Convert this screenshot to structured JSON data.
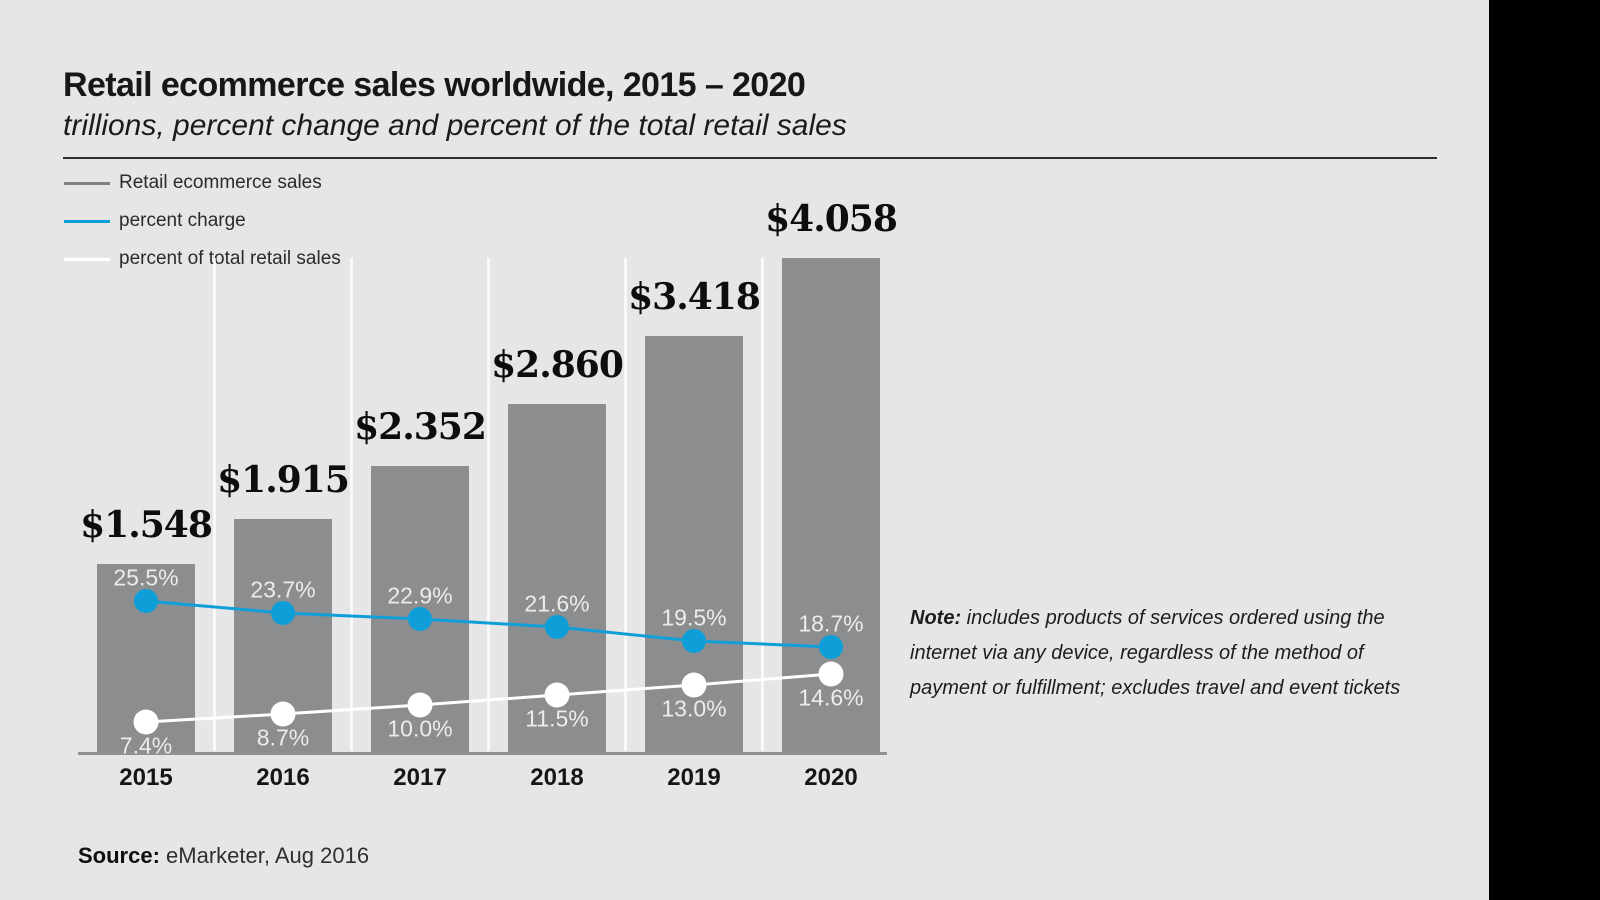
{
  "header": {
    "title": "Retail ecommerce sales worldwide, 2015 – 2020",
    "subtitle": "trillions, percent change and percent of the total retail sales"
  },
  "legend": {
    "items": [
      {
        "label": "Retail ecommerce sales",
        "color": "#808285"
      },
      {
        "label": "percent charge",
        "color": "#0f9fd8"
      },
      {
        "label": "percent of total retail sales",
        "color": "#ffffff"
      }
    ]
  },
  "chart_data": {
    "type": "bar",
    "title": "Retail ecommerce sales worldwide, 2015 – 2020",
    "subtitle": "trillions, percent change and percent of the total retail sales",
    "categories": [
      "2015",
      "2016",
      "2017",
      "2018",
      "2019",
      "2020"
    ],
    "series": [
      {
        "name": "Retail ecommerce sales",
        "type": "bar",
        "unit": "trillions USD",
        "color": "#8b8d8f",
        "values": [
          1.548,
          1.915,
          2.352,
          2.86,
          3.418,
          4.058
        ],
        "labels": [
          "$1.548",
          "$1.915",
          "$2.352",
          "$2.860",
          "$3.418",
          "$4.058"
        ]
      },
      {
        "name": "percent charge",
        "type": "line",
        "unit": "percent",
        "color": "#0f9fd8",
        "values": [
          25.5,
          23.7,
          22.9,
          21.6,
          19.5,
          18.7
        ],
        "labels": [
          "25.5%",
          "23.7%",
          "22.9%",
          "21.6%",
          "19.5%",
          "18.7%"
        ],
        "label_position": "above"
      },
      {
        "name": "percent of total retail sales",
        "type": "line",
        "unit": "percent",
        "color": "#ffffff",
        "values": [
          7.4,
          8.7,
          10.0,
          11.5,
          13.0,
          14.6
        ],
        "labels": [
          "7.4%",
          "8.7%",
          "10.0%",
          "11.5%",
          "13.0%",
          "14.6%"
        ],
        "label_position": "below"
      }
    ],
    "xlabel": "",
    "ylabel": "",
    "grid": "vertical-column-separators",
    "legend_position": "top-left"
  },
  "note": {
    "label": "Note:",
    "lines": [
      "includes products of services ordered using the",
      "internet via any device, regardless of the method of",
      "payment or fulfillment; excludes travel and event tickets"
    ]
  },
  "source": {
    "label": "Source:",
    "text": " eMarketer, Aug 2016"
  }
}
